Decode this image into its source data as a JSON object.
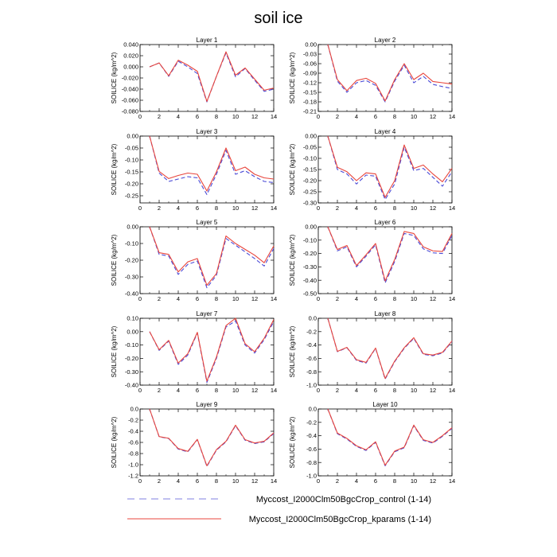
{
  "title": "soil ice",
  "legend": [
    {
      "label": "Myccost_I2000Clm50BgcCrop_control (1-14)",
      "color": "#4a4ad6",
      "dash": true
    },
    {
      "label": "Myccost_I2000Clm50BgcCrop_kparams (1-14)",
      "color": "#e8453c",
      "dash": false
    }
  ],
  "chart_data": [
    {
      "type": "line",
      "title": "Layer 1",
      "ylabel": "SOILICE  (kg/m^2)",
      "x": [
        1,
        2,
        3,
        4,
        5,
        6,
        7,
        8,
        9,
        10,
        11,
        12,
        13,
        14
      ],
      "xticks": [
        0,
        2,
        4,
        6,
        8,
        10,
        12,
        14
      ],
      "xlim": [
        0,
        14
      ],
      "ylim": [
        -0.08,
        0.04
      ],
      "yticks": [
        0.04,
        0.02,
        0.0,
        -0.02,
        -0.04,
        -0.06,
        -0.08
      ],
      "ytick_labels": [
        "0.040",
        "0.020",
        "0.000",
        "-0.020",
        "-0.040",
        "-0.060",
        "-0.080"
      ],
      "series": [
        {
          "name": "Myccost_I2000Clm50BgcCrop_control (1-14)",
          "values": [
            0.0,
            0.007,
            -0.017,
            0.01,
            0.0,
            -0.012,
            -0.063,
            -0.017,
            0.025,
            -0.018,
            -0.003,
            -0.024,
            -0.044,
            -0.04
          ]
        },
        {
          "name": "Myccost_I2000Clm50BgcCrop_kparams (1-14)",
          "values": [
            0.0,
            0.007,
            -0.016,
            0.012,
            0.003,
            -0.008,
            -0.062,
            -0.017,
            0.027,
            -0.015,
            -0.002,
            -0.022,
            -0.042,
            -0.038
          ]
        }
      ]
    },
    {
      "type": "line",
      "title": "Layer 2",
      "ylabel": "SOILICE  (kg/m^2)",
      "x": [
        1,
        2,
        3,
        4,
        5,
        6,
        7,
        8,
        9,
        10,
        11,
        12,
        13,
        14
      ],
      "xticks": [
        0,
        2,
        4,
        6,
        8,
        10,
        12,
        14
      ],
      "xlim": [
        0,
        14
      ],
      "ylim": [
        -0.21,
        0.0
      ],
      "yticks": [
        0.0,
        -0.03,
        -0.06,
        -0.09,
        -0.12,
        -0.15,
        -0.18,
        -0.21
      ],
      "ytick_labels": [
        "0.00",
        "-0.03",
        "-0.06",
        "-0.09",
        "-0.12",
        "-0.15",
        "-0.18",
        "-0.21"
      ],
      "series": [
        {
          "name": "Myccost_I2000Clm50BgcCrop_control (1-14)",
          "values": [
            0.0,
            -0.115,
            -0.15,
            -0.12,
            -0.113,
            -0.128,
            -0.18,
            -0.115,
            -0.065,
            -0.12,
            -0.1,
            -0.125,
            -0.132,
            -0.138
          ]
        },
        {
          "name": "Myccost_I2000Clm50BgcCrop_kparams (1-14)",
          "values": [
            0.0,
            -0.11,
            -0.145,
            -0.113,
            -0.106,
            -0.122,
            -0.177,
            -0.11,
            -0.06,
            -0.11,
            -0.09,
            -0.116,
            -0.12,
            -0.124
          ]
        }
      ]
    },
    {
      "type": "line",
      "title": "Layer 3",
      "ylabel": "SOILICE  (kg/m^2)",
      "x": [
        1,
        2,
        3,
        4,
        5,
        6,
        7,
        8,
        9,
        10,
        11,
        12,
        13,
        14
      ],
      "xticks": [
        0,
        2,
        4,
        6,
        8,
        10,
        12,
        14
      ],
      "xlim": [
        0,
        14
      ],
      "ylim": [
        -0.28,
        0.0
      ],
      "yticks": [
        0.0,
        -0.05,
        -0.1,
        -0.15,
        -0.2,
        -0.25
      ],
      "ytick_labels": [
        "0.00",
        "-0.05",
        "-0.10",
        "-0.15",
        "-0.20",
        "-0.25"
      ],
      "series": [
        {
          "name": "Myccost_I2000Clm50BgcCrop_control (1-14)",
          "values": [
            0.0,
            -0.155,
            -0.19,
            -0.18,
            -0.17,
            -0.175,
            -0.245,
            -0.16,
            -0.06,
            -0.16,
            -0.145,
            -0.17,
            -0.19,
            -0.195
          ]
        },
        {
          "name": "Myccost_I2000Clm50BgcCrop_kparams (1-14)",
          "values": [
            0.0,
            -0.148,
            -0.178,
            -0.165,
            -0.155,
            -0.16,
            -0.23,
            -0.15,
            -0.05,
            -0.145,
            -0.13,
            -0.16,
            -0.175,
            -0.18
          ]
        }
      ]
    },
    {
      "type": "line",
      "title": "Layer 4",
      "ylabel": "SOILICE  (kg/m^2)",
      "x": [
        1,
        2,
        3,
        4,
        5,
        6,
        7,
        8,
        9,
        10,
        11,
        12,
        13,
        14
      ],
      "xticks": [
        0,
        2,
        4,
        6,
        8,
        10,
        12,
        14
      ],
      "xlim": [
        0,
        14
      ],
      "ylim": [
        -0.3,
        0.0
      ],
      "yticks": [
        0.0,
        -0.05,
        -0.1,
        -0.15,
        -0.2,
        -0.25,
        -0.3
      ],
      "ytick_labels": [
        "0.00",
        "-0.05",
        "-0.10",
        "-0.15",
        "-0.20",
        "-0.25",
        "-0.30"
      ],
      "series": [
        {
          "name": "Myccost_I2000Clm50BgcCrop_control (1-14)",
          "values": [
            0.0,
            -0.15,
            -0.17,
            -0.215,
            -0.175,
            -0.18,
            -0.285,
            -0.215,
            -0.05,
            -0.155,
            -0.145,
            -0.185,
            -0.225,
            -0.16
          ]
        },
        {
          "name": "Myccost_I2000Clm50BgcCrop_kparams (1-14)",
          "values": [
            0.0,
            -0.14,
            -0.16,
            -0.2,
            -0.165,
            -0.17,
            -0.275,
            -0.2,
            -0.04,
            -0.145,
            -0.13,
            -0.17,
            -0.205,
            -0.145
          ]
        }
      ]
    },
    {
      "type": "line",
      "title": "Layer 5",
      "ylabel": "SOILICE  (kg/m^2)",
      "x": [
        1,
        2,
        3,
        4,
        5,
        6,
        7,
        8,
        9,
        10,
        11,
        12,
        13,
        14
      ],
      "xticks": [
        0,
        2,
        4,
        6,
        8,
        10,
        12,
        14
      ],
      "xlim": [
        0,
        14
      ],
      "ylim": [
        -0.4,
        0.0
      ],
      "yticks": [
        0.0,
        -0.1,
        -0.2,
        -0.3,
        -0.4
      ],
      "ytick_labels": [
        "0.00",
        "-0.10",
        "-0.20",
        "-0.30",
        "-0.40"
      ],
      "series": [
        {
          "name": "Myccost_I2000Clm50BgcCrop_control (1-14)",
          "values": [
            0.0,
            -0.165,
            -0.175,
            -0.285,
            -0.225,
            -0.205,
            -0.365,
            -0.29,
            -0.07,
            -0.11,
            -0.15,
            -0.19,
            -0.235,
            -0.13
          ]
        },
        {
          "name": "Myccost_I2000Clm50BgcCrop_kparams (1-14)",
          "values": [
            0.0,
            -0.155,
            -0.165,
            -0.27,
            -0.21,
            -0.19,
            -0.35,
            -0.28,
            -0.055,
            -0.1,
            -0.135,
            -0.17,
            -0.215,
            -0.115
          ]
        }
      ]
    },
    {
      "type": "line",
      "title": "Layer 6",
      "ylabel": "SOILICE  (kg/m^2)",
      "x": [
        1,
        2,
        3,
        4,
        5,
        6,
        7,
        8,
        9,
        10,
        11,
        12,
        13,
        14
      ],
      "xticks": [
        0,
        2,
        4,
        6,
        8,
        10,
        12,
        14
      ],
      "xlim": [
        0,
        14
      ],
      "ylim": [
        -0.5,
        0.0
      ],
      "yticks": [
        0.0,
        -0.1,
        -0.2,
        -0.3,
        -0.4,
        -0.5
      ],
      "ytick_labels": [
        "0.00",
        "-0.10",
        "-0.20",
        "-0.30",
        "-0.40",
        "-0.50"
      ],
      "series": [
        {
          "name": "Myccost_I2000Clm50BgcCrop_control (1-14)",
          "values": [
            0.0,
            -0.18,
            -0.15,
            -0.3,
            -0.22,
            -0.135,
            -0.42,
            -0.26,
            -0.05,
            -0.065,
            -0.165,
            -0.195,
            -0.2,
            -0.065
          ]
        },
        {
          "name": "Myccost_I2000Clm50BgcCrop_kparams (1-14)",
          "values": [
            0.0,
            -0.17,
            -0.14,
            -0.29,
            -0.21,
            -0.125,
            -0.405,
            -0.245,
            -0.035,
            -0.05,
            -0.15,
            -0.18,
            -0.185,
            -0.05
          ]
        }
      ]
    },
    {
      "type": "line",
      "title": "Layer 7",
      "ylabel": "SOILICE  (kg/m^2)",
      "x": [
        1,
        2,
        3,
        4,
        5,
        6,
        7,
        8,
        9,
        10,
        11,
        12,
        13,
        14
      ],
      "xticks": [
        0,
        2,
        4,
        6,
        8,
        10,
        12,
        14
      ],
      "xlim": [
        0,
        14
      ],
      "ylim": [
        -0.4,
        0.1
      ],
      "yticks": [
        0.1,
        0.0,
        -0.1,
        -0.2,
        -0.3,
        -0.4
      ],
      "ytick_labels": [
        "0.10",
        "0.00",
        "-0.10",
        "-0.20",
        "-0.30",
        "-0.40"
      ],
      "series": [
        {
          "name": "Myccost_I2000Clm50BgcCrop_control (1-14)",
          "values": [
            0.0,
            -0.14,
            -0.07,
            -0.245,
            -0.175,
            -0.01,
            -0.38,
            -0.2,
            0.035,
            0.08,
            -0.1,
            -0.16,
            -0.06,
            0.075
          ]
        },
        {
          "name": "Myccost_I2000Clm50BgcCrop_kparams (1-14)",
          "values": [
            0.0,
            -0.135,
            -0.065,
            -0.235,
            -0.165,
            -0.005,
            -0.37,
            -0.19,
            0.045,
            0.1,
            -0.09,
            -0.15,
            -0.05,
            0.09
          ]
        }
      ]
    },
    {
      "type": "line",
      "title": "Layer 8",
      "ylabel": "SOILICE  (kg/m^2)",
      "x": [
        1,
        2,
        3,
        4,
        5,
        6,
        7,
        8,
        9,
        10,
        11,
        12,
        13,
        14
      ],
      "xticks": [
        0,
        2,
        4,
        6,
        8,
        10,
        12,
        14
      ],
      "xlim": [
        0,
        14
      ],
      "ylim": [
        -1.0,
        0.0
      ],
      "yticks": [
        0.0,
        -0.2,
        -0.4,
        -0.6,
        -0.8,
        -1.0
      ],
      "ytick_labels": [
        "0.0",
        "-0.2",
        "-0.4",
        "-0.6",
        "-0.8",
        "-1.0"
      ],
      "series": [
        {
          "name": "Myccost_I2000Clm50BgcCrop_control (1-14)",
          "values": [
            0.0,
            -0.5,
            -0.44,
            -0.63,
            -0.67,
            -0.45,
            -0.91,
            -0.65,
            -0.45,
            -0.3,
            -0.54,
            -0.56,
            -0.52,
            -0.35
          ]
        },
        {
          "name": "Myccost_I2000Clm50BgcCrop_kparams (1-14)",
          "values": [
            0.0,
            -0.495,
            -0.435,
            -0.62,
            -0.66,
            -0.445,
            -0.9,
            -0.64,
            -0.44,
            -0.29,
            -0.53,
            -0.55,
            -0.51,
            -0.34
          ]
        }
      ]
    },
    {
      "type": "line",
      "title": "Layer 9",
      "ylabel": "SOILICE  (kg/m^2)",
      "x": [
        1,
        2,
        3,
        4,
        5,
        6,
        7,
        8,
        9,
        10,
        11,
        12,
        13,
        14
      ],
      "xticks": [
        0,
        2,
        4,
        6,
        8,
        10,
        12,
        14
      ],
      "xlim": [
        0,
        14
      ],
      "ylim": [
        -1.2,
        0.0
      ],
      "yticks": [
        0.0,
        -0.2,
        -0.4,
        -0.6,
        -0.8,
        -1.0,
        -1.2
      ],
      "ytick_labels": [
        "0.0",
        "-0.2",
        "-0.4",
        "-0.6",
        "-0.8",
        "-1.0",
        "-1.2"
      ],
      "series": [
        {
          "name": "Myccost_I2000Clm50BgcCrop_control (1-14)",
          "values": [
            0.0,
            -0.5,
            -0.53,
            -0.72,
            -0.77,
            -0.55,
            -1.03,
            -0.74,
            -0.59,
            -0.3,
            -0.56,
            -0.62,
            -0.59,
            -0.44
          ]
        },
        {
          "name": "Myccost_I2000Clm50BgcCrop_kparams (1-14)",
          "values": [
            0.0,
            -0.495,
            -0.525,
            -0.71,
            -0.76,
            -0.545,
            -1.02,
            -0.73,
            -0.58,
            -0.29,
            -0.55,
            -0.61,
            -0.58,
            -0.43
          ]
        }
      ]
    },
    {
      "type": "line",
      "title": "Layer 10",
      "ylabel": "SOILICE  (kg/m^2)",
      "x": [
        1,
        2,
        3,
        4,
        5,
        6,
        7,
        8,
        9,
        10,
        11,
        12,
        13,
        14
      ],
      "xticks": [
        0,
        2,
        4,
        6,
        8,
        10,
        12,
        14
      ],
      "xlim": [
        0,
        14
      ],
      "ylim": [
        -1.0,
        0.0
      ],
      "yticks": [
        0.0,
        -0.2,
        -0.4,
        -0.6,
        -0.8,
        -1.0
      ],
      "ytick_labels": [
        "0.0",
        "-0.2",
        "-0.4",
        "-0.6",
        "-0.8",
        "-1.0"
      ],
      "series": [
        {
          "name": "Myccost_I2000Clm50BgcCrop_control (1-14)",
          "values": [
            0.0,
            -0.37,
            -0.45,
            -0.56,
            -0.62,
            -0.5,
            -0.85,
            -0.64,
            -0.58,
            -0.25,
            -0.47,
            -0.51,
            -0.41,
            -0.29
          ]
        },
        {
          "name": "Myccost_I2000Clm50BgcCrop_kparams (1-14)",
          "values": [
            0.0,
            -0.36,
            -0.44,
            -0.55,
            -0.61,
            -0.49,
            -0.84,
            -0.63,
            -0.57,
            -0.24,
            -0.46,
            -0.5,
            -0.4,
            -0.28
          ]
        }
      ]
    }
  ]
}
